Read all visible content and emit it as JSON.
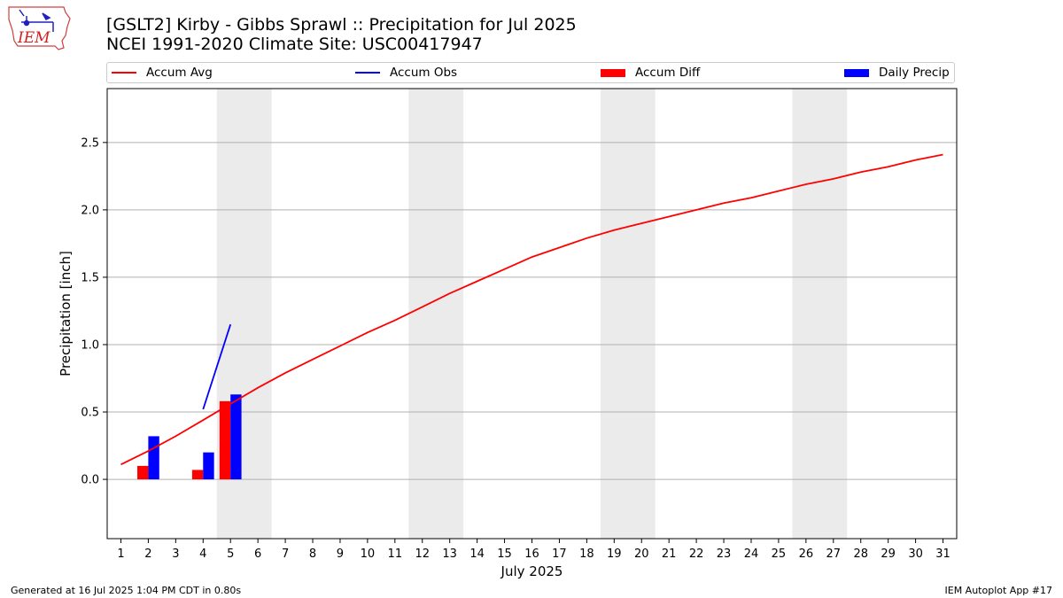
{
  "header": {
    "title_line1": "[GSLT2] Kirby - Gibbs Sprawl :: Precipitation for Jul 2025",
    "title_line2": "NCEI 1991-2020 Climate Site: USC00417947"
  },
  "logo": {
    "text": "IEM"
  },
  "colors": {
    "avg": "#ff0000",
    "obs": "#0000ff",
    "diff": "#ff0000",
    "daily": "#0000ff",
    "weekend": "#ebebeb",
    "grid": "#b0b0b0"
  },
  "chart_data": {
    "type": "bar",
    "xlabel": "July 2025",
    "ylabel": "Precipitation [inch]",
    "ylim": [
      -0.44,
      2.9
    ],
    "yticks": [
      0.0,
      0.5,
      1.0,
      1.5,
      2.0,
      2.5
    ],
    "ytick_labels": [
      "0.0",
      "0.5",
      "1.0",
      "1.5",
      "2.0",
      "2.5"
    ],
    "xlim": [
      0.5,
      31.5
    ],
    "days": [
      1,
      2,
      3,
      4,
      5,
      6,
      7,
      8,
      9,
      10,
      11,
      12,
      13,
      14,
      15,
      16,
      17,
      18,
      19,
      20,
      21,
      22,
      23,
      24,
      25,
      26,
      27,
      28,
      29,
      30,
      31
    ],
    "weekend_spans": [
      [
        4.5,
        6.5
      ],
      [
        11.5,
        13.5
      ],
      [
        18.5,
        20.5
      ],
      [
        25.5,
        27.5
      ]
    ],
    "grid": true,
    "legend_position": "top",
    "legend": [
      "Accum Avg",
      "Accum Obs",
      "Accum Diff",
      "Daily Precip"
    ],
    "series": [
      {
        "name": "Accum Avg",
        "kind": "line",
        "x": [
          1,
          2,
          3,
          4,
          5,
          6,
          7,
          8,
          9,
          10,
          11,
          12,
          13,
          14,
          15,
          16,
          17,
          18,
          19,
          20,
          21,
          22,
          23,
          24,
          25,
          26,
          27,
          28,
          29,
          30,
          31
        ],
        "values": [
          0.11,
          0.21,
          0.32,
          0.44,
          0.56,
          0.68,
          0.79,
          0.89,
          0.99,
          1.09,
          1.18,
          1.28,
          1.38,
          1.47,
          1.56,
          1.65,
          1.72,
          1.79,
          1.85,
          1.9,
          1.95,
          2.0,
          2.05,
          2.09,
          2.14,
          2.19,
          2.23,
          2.28,
          2.32,
          2.37,
          2.41
        ]
      },
      {
        "name": "Accum Obs",
        "kind": "line",
        "x": [
          4,
          5
        ],
        "values": [
          0.52,
          1.15
        ]
      },
      {
        "name": "Accum Diff",
        "kind": "bar",
        "x": [
          2,
          4,
          5
        ],
        "values": [
          0.1,
          0.07,
          0.58
        ]
      },
      {
        "name": "Daily Precip",
        "kind": "bar",
        "x": [
          2,
          4,
          5
        ],
        "values": [
          0.32,
          0.2,
          0.63
        ]
      }
    ]
  },
  "footer": {
    "left": "Generated at 16 Jul 2025 1:04 PM CDT in 0.80s",
    "right": "IEM Autoplot App #17"
  }
}
